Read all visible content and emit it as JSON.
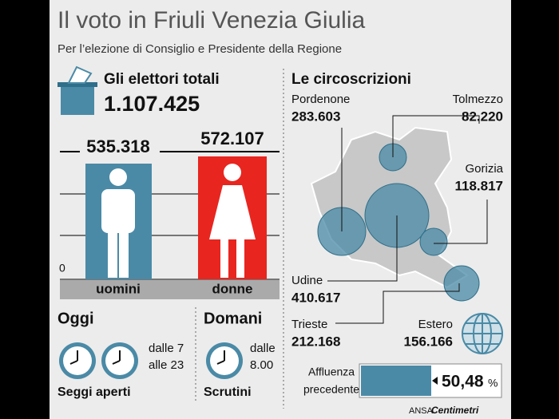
{
  "header": {
    "title": "Il voto in Friuli Venezia Giulia",
    "subtitle": "Per l’elezione di Consiglio e Presidente della Regione"
  },
  "electors": {
    "label": "Gli elettori totali",
    "total": "1.107.425",
    "axis_zero": "0",
    "men": {
      "value": "535.318",
      "label": "uomini"
    },
    "women": {
      "value": "572.107",
      "label": "donne"
    }
  },
  "schedule": {
    "today": {
      "title": "Oggi",
      "times": [
        "dalle 7",
        "alle 23"
      ],
      "caption": "Seggi aperti"
    },
    "tomorrow": {
      "title": "Domani",
      "times": [
        "dalle",
        "8.00"
      ],
      "caption": "Scrutini"
    }
  },
  "districts": {
    "title": "Le circoscrizioni",
    "items": [
      {
        "name": "Pordenone",
        "value": "283.603"
      },
      {
        "name": "Tolmezzo",
        "value": "82.220"
      },
      {
        "name": "Gorizia",
        "value": "118.817"
      },
      {
        "name": "Udine",
        "value": "410.617"
      },
      {
        "name": "Trieste",
        "value": "212.168"
      },
      {
        "name": "Estero",
        "value": "156.166"
      }
    ]
  },
  "turnout": {
    "label": [
      "Affluenza",
      "precedente"
    ],
    "value": "50,48",
    "unit": "%"
  },
  "footer": {
    "source": "ANSA",
    "brand": "Centimetri"
  }
}
